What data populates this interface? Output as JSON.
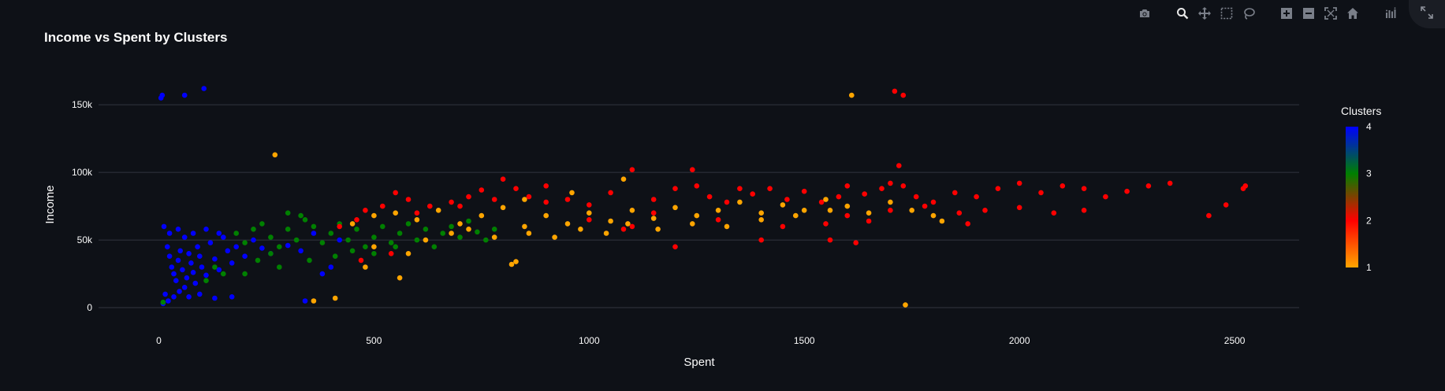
{
  "chart_data": {
    "type": "scatter",
    "title": "Income vs Spent by Clusters",
    "xlabel": "Spent",
    "ylabel": "Income",
    "xlim": [
      -140,
      2650
    ],
    "ylim": [
      -18000,
      178000
    ],
    "x_ticks": [
      0,
      500,
      1000,
      1500,
      2000,
      2500
    ],
    "x_tick_labels": [
      "0",
      "500",
      "1000",
      "1500",
      "2000",
      "2500"
    ],
    "y_ticks": [
      0,
      50000,
      100000,
      150000
    ],
    "y_tick_labels": [
      "0",
      "50k",
      "100k",
      "150k"
    ],
    "grid": "horizontal",
    "colorbar": {
      "title": "Clusters",
      "range": [
        1,
        4
      ],
      "ticks": [
        1,
        2,
        3,
        4
      ],
      "tick_labels": [
        "1",
        "2",
        "3",
        "4"
      ],
      "colorscale": [
        "#ffa500",
        "#ff0000",
        "#008000",
        "#0000ff"
      ]
    },
    "cluster_colors": {
      "1": "#ffa500",
      "2": "#ff0000",
      "3": "#008000",
      "4": "#0000ff"
    },
    "series": [
      {
        "cluster": 4,
        "points": [
          [
            5,
            155000
          ],
          [
            8,
            157000
          ],
          [
            60,
            157000
          ],
          [
            105,
            162000
          ],
          [
            20,
            45000
          ],
          [
            25,
            38000
          ],
          [
            30,
            30000
          ],
          [
            35,
            25000
          ],
          [
            40,
            20000
          ],
          [
            45,
            35000
          ],
          [
            50,
            42000
          ],
          [
            55,
            28000
          ],
          [
            60,
            15000
          ],
          [
            65,
            22000
          ],
          [
            70,
            40000
          ],
          [
            75,
            33000
          ],
          [
            80,
            26000
          ],
          [
            85,
            18000
          ],
          [
            90,
            45000
          ],
          [
            95,
            38000
          ],
          [
            100,
            30000
          ],
          [
            110,
            24000
          ],
          [
            120,
            48000
          ],
          [
            130,
            36000
          ],
          [
            140,
            28000
          ],
          [
            150,
            52000
          ],
          [
            160,
            42000
          ],
          [
            170,
            33000
          ],
          [
            180,
            45000
          ],
          [
            200,
            38000
          ],
          [
            220,
            50000
          ],
          [
            240,
            44000
          ],
          [
            260,
            40000
          ],
          [
            300,
            46000
          ],
          [
            330,
            42000
          ],
          [
            360,
            55000
          ],
          [
            400,
            30000
          ],
          [
            420,
            50000
          ],
          [
            15,
            10000
          ],
          [
            22,
            5000
          ],
          [
            35,
            8000
          ],
          [
            48,
            12000
          ],
          [
            70,
            8000
          ],
          [
            95,
            10000
          ],
          [
            130,
            7000
          ],
          [
            170,
            8000
          ],
          [
            10,
            3000
          ],
          [
            12,
            60000
          ],
          [
            25,
            55000
          ],
          [
            45,
            58000
          ],
          [
            60,
            52000
          ],
          [
            80,
            55000
          ],
          [
            110,
            58000
          ],
          [
            140,
            55000
          ],
          [
            380,
            25000
          ],
          [
            340,
            5000
          ]
        ]
      },
      {
        "cluster": 3,
        "points": [
          [
            110,
            20000
          ],
          [
            130,
            30000
          ],
          [
            150,
            25000
          ],
          [
            180,
            55000
          ],
          [
            200,
            48000
          ],
          [
            220,
            58000
          ],
          [
            240,
            62000
          ],
          [
            260,
            52000
          ],
          [
            280,
            45000
          ],
          [
            300,
            58000
          ],
          [
            320,
            50000
          ],
          [
            340,
            65000
          ],
          [
            360,
            60000
          ],
          [
            380,
            48000
          ],
          [
            400,
            55000
          ],
          [
            420,
            62000
          ],
          [
            440,
            50000
          ],
          [
            460,
            58000
          ],
          [
            480,
            45000
          ],
          [
            500,
            52000
          ],
          [
            520,
            60000
          ],
          [
            540,
            48000
          ],
          [
            560,
            55000
          ],
          [
            580,
            62000
          ],
          [
            600,
            50000
          ],
          [
            620,
            58000
          ],
          [
            640,
            45000
          ],
          [
            660,
            55000
          ],
          [
            680,
            60000
          ],
          [
            700,
            52000
          ],
          [
            720,
            64000
          ],
          [
            740,
            56000
          ],
          [
            760,
            50000
          ],
          [
            780,
            58000
          ],
          [
            300,
            70000
          ],
          [
            330,
            68000
          ],
          [
            260,
            40000
          ],
          [
            280,
            30000
          ],
          [
            350,
            35000
          ],
          [
            410,
            38000
          ],
          [
            450,
            42000
          ],
          [
            500,
            40000
          ],
          [
            550,
            45000
          ],
          [
            10,
            4000
          ],
          [
            200,
            25000
          ],
          [
            230,
            35000
          ]
        ]
      },
      {
        "cluster": 2,
        "points": [
          [
            420,
            60000
          ],
          [
            460,
            65000
          ],
          [
            480,
            72000
          ],
          [
            520,
            75000
          ],
          [
            550,
            85000
          ],
          [
            580,
            80000
          ],
          [
            600,
            70000
          ],
          [
            630,
            75000
          ],
          [
            680,
            78000
          ],
          [
            720,
            82000
          ],
          [
            750,
            87000
          ],
          [
            780,
            80000
          ],
          [
            800,
            95000
          ],
          [
            830,
            88000
          ],
          [
            860,
            82000
          ],
          [
            900,
            78000
          ],
          [
            950,
            80000
          ],
          [
            1000,
            76000
          ],
          [
            1050,
            85000
          ],
          [
            1100,
            102000
          ],
          [
            1150,
            80000
          ],
          [
            1200,
            88000
          ],
          [
            1240,
            102000
          ],
          [
            1280,
            82000
          ],
          [
            1320,
            78000
          ],
          [
            1380,
            84000
          ],
          [
            1420,
            88000
          ],
          [
            1460,
            80000
          ],
          [
            1500,
            86000
          ],
          [
            1540,
            78000
          ],
          [
            1580,
            82000
          ],
          [
            1600,
            90000
          ],
          [
            1640,
            84000
          ],
          [
            1680,
            88000
          ],
          [
            1700,
            92000
          ],
          [
            1720,
            105000
          ],
          [
            1730,
            90000
          ],
          [
            1760,
            82000
          ],
          [
            1800,
            78000
          ],
          [
            1850,
            85000
          ],
          [
            1900,
            82000
          ],
          [
            1950,
            88000
          ],
          [
            2000,
            92000
          ],
          [
            2050,
            85000
          ],
          [
            2100,
            90000
          ],
          [
            2150,
            88000
          ],
          [
            2200,
            82000
          ],
          [
            2250,
            86000
          ],
          [
            2300,
            90000
          ],
          [
            2350,
            92000
          ],
          [
            2440,
            68000
          ],
          [
            2480,
            76000
          ],
          [
            2520,
            88000
          ],
          [
            2525,
            90000
          ],
          [
            1710,
            160000
          ],
          [
            1730,
            157000
          ],
          [
            1080,
            58000
          ],
          [
            1150,
            70000
          ],
          [
            1300,
            65000
          ],
          [
            1450,
            60000
          ],
          [
            1550,
            62000
          ],
          [
            1600,
            68000
          ],
          [
            1650,
            64000
          ],
          [
            1700,
            72000
          ],
          [
            1780,
            75000
          ],
          [
            1860,
            70000
          ],
          [
            1920,
            72000
          ],
          [
            2000,
            74000
          ],
          [
            2080,
            70000
          ],
          [
            2150,
            72000
          ],
          [
            1200,
            45000
          ],
          [
            1400,
            50000
          ],
          [
            1560,
            50000
          ],
          [
            1620,
            48000
          ],
          [
            1880,
            62000
          ],
          [
            700,
            75000
          ],
          [
            900,
            90000
          ],
          [
            1000,
            65000
          ],
          [
            1100,
            60000
          ],
          [
            1250,
            90000
          ],
          [
            1350,
            88000
          ],
          [
            540,
            40000
          ],
          [
            470,
            35000
          ]
        ]
      },
      {
        "cluster": 1,
        "points": [
          [
            270,
            113000
          ],
          [
            1610,
            157000
          ],
          [
            360,
            5000
          ],
          [
            410,
            7000
          ],
          [
            1735,
            2000
          ],
          [
            560,
            22000
          ],
          [
            820,
            32000
          ],
          [
            830,
            34000
          ],
          [
            450,
            62000
          ],
          [
            500,
            68000
          ],
          [
            550,
            70000
          ],
          [
            600,
            65000
          ],
          [
            650,
            72000
          ],
          [
            700,
            62000
          ],
          [
            750,
            68000
          ],
          [
            800,
            74000
          ],
          [
            850,
            60000
          ],
          [
            900,
            68000
          ],
          [
            950,
            62000
          ],
          [
            1000,
            70000
          ],
          [
            1050,
            64000
          ],
          [
            1100,
            72000
          ],
          [
            1150,
            66000
          ],
          [
            1200,
            74000
          ],
          [
            1250,
            68000
          ],
          [
            1300,
            72000
          ],
          [
            1350,
            78000
          ],
          [
            1400,
            70000
          ],
          [
            1450,
            76000
          ],
          [
            1500,
            72000
          ],
          [
            1550,
            80000
          ],
          [
            1600,
            75000
          ],
          [
            1650,
            70000
          ],
          [
            1700,
            78000
          ],
          [
            1750,
            72000
          ],
          [
            1800,
            68000
          ],
          [
            1820,
            64000
          ],
          [
            620,
            50000
          ],
          [
            680,
            55000
          ],
          [
            720,
            58000
          ],
          [
            780,
            52000
          ],
          [
            860,
            55000
          ],
          [
            920,
            52000
          ],
          [
            980,
            58000
          ],
          [
            1040,
            55000
          ],
          [
            1090,
            62000
          ],
          [
            1160,
            58000
          ],
          [
            1240,
            62000
          ],
          [
            1320,
            60000
          ],
          [
            1400,
            65000
          ],
          [
            1480,
            68000
          ],
          [
            1560,
            72000
          ],
          [
            1080,
            95000
          ],
          [
            850,
            80000
          ],
          [
            960,
            85000
          ],
          [
            500,
            45000
          ],
          [
            580,
            40000
          ],
          [
            480,
            30000
          ]
        ]
      }
    ]
  },
  "modebar": {
    "buttons": [
      {
        "name": "camera-icon",
        "title": "Download plot as a png"
      },
      {
        "name": "zoom-icon",
        "title": "Zoom"
      },
      {
        "name": "pan-icon",
        "title": "Pan"
      },
      {
        "name": "box-select-icon",
        "title": "Box Select"
      },
      {
        "name": "lasso-select-icon",
        "title": "Lasso Select"
      },
      {
        "name": "zoom-in-icon",
        "title": "Zoom in"
      },
      {
        "name": "zoom-out-icon",
        "title": "Zoom out"
      },
      {
        "name": "autoscale-icon",
        "title": "Autoscale"
      },
      {
        "name": "reset-axes-icon",
        "title": "Reset axes"
      },
      {
        "name": "plotly-logo-icon",
        "title": "Produced with Plotly"
      }
    ],
    "active": "zoom-icon"
  },
  "fullscreen_button": {
    "name": "fullscreen-icon"
  }
}
